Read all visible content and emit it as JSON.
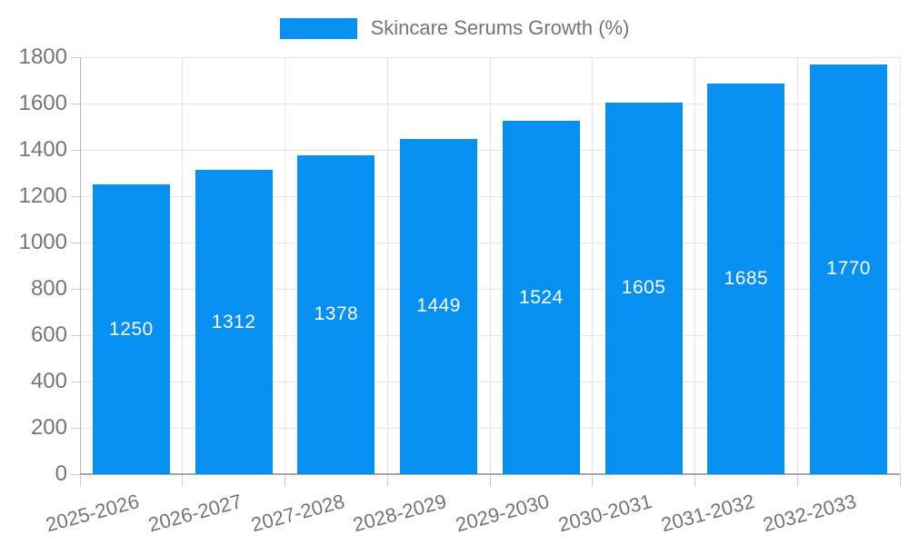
{
  "legend": {
    "label": "Skincare Serums Growth (%)"
  },
  "chart_data": {
    "type": "bar",
    "title": "Skincare Serums Growth (%)",
    "categories": [
      "2025-2026",
      "2026-2027",
      "2027-2028",
      "2028-2029",
      "2029-2030",
      "2030-2031",
      "2031-2032",
      "2032-2033"
    ],
    "values": [
      1250,
      1312,
      1378,
      1449,
      1524,
      1605,
      1685,
      1770
    ],
    "xlabel": "",
    "ylabel": "",
    "ylim": [
      0,
      1800
    ],
    "ytick_step": 200,
    "yticks": [
      0,
      200,
      400,
      600,
      800,
      1000,
      1200,
      1400,
      1600,
      1800
    ],
    "grid": true,
    "legend_position": "top-center",
    "bar_label_position": "inside-center",
    "colors": {
      "bar": "#0590f2",
      "bar_label": "#ffffff",
      "axis_text": "#757575",
      "gridline": "#e6e6e6",
      "axis_line": "#b3b3b3",
      "bottom_axis_line": "#a8a8a8",
      "tick": "#cccccc",
      "background": "#ffffff"
    }
  }
}
